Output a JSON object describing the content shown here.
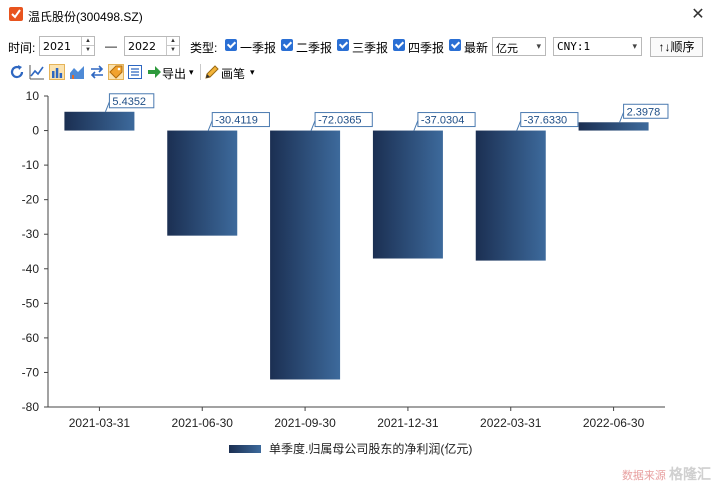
{
  "window": {
    "title": "温氏股份(300498.SZ)",
    "close": "✕"
  },
  "toolbar": {
    "time_label": "时间:",
    "start_year": "2021",
    "dash": "—",
    "end_year": "2022",
    "type_label": "类型:",
    "checkboxes": [
      "一季报",
      "二季报",
      "三季报",
      "四季报",
      "最新"
    ],
    "unit_select": "亿元",
    "currency_select": "CNY:1",
    "order_button": "↑↓顺序"
  },
  "toolbar2": {
    "export_label": "导出",
    "brush_label": "画笔"
  },
  "colors": {
    "bar_dark": "#1b2f52",
    "bar_light": "#3d6a9c",
    "label_border": "#4a7ab0",
    "label_text": "#1f4e86"
  },
  "watermark": {
    "source": "数据来源",
    "brand": "格隆汇"
  },
  "chart_data": {
    "type": "bar",
    "categories": [
      "2021-03-31",
      "2021-06-30",
      "2021-09-30",
      "2021-12-31",
      "2022-03-31",
      "2022-06-30"
    ],
    "series": [
      {
        "name": "单季度.归属母公司股东的净利润(亿元)",
        "values": [
          5.4352,
          -30.4119,
          -72.0365,
          -37.0304,
          -37.633,
          2.3978
        ],
        "labels": [
          "5.4352",
          "-30.4119",
          "-72.0365",
          "-37.0304",
          "-37.6330",
          "2.3978"
        ]
      }
    ],
    "yticks": [
      "10",
      "0",
      "-10",
      "-20",
      "-30",
      "-40",
      "-50",
      "-60",
      "-70",
      "-80"
    ],
    "ylim": [
      -80,
      10
    ],
    "legend_position": "bottom",
    "grid": false
  }
}
